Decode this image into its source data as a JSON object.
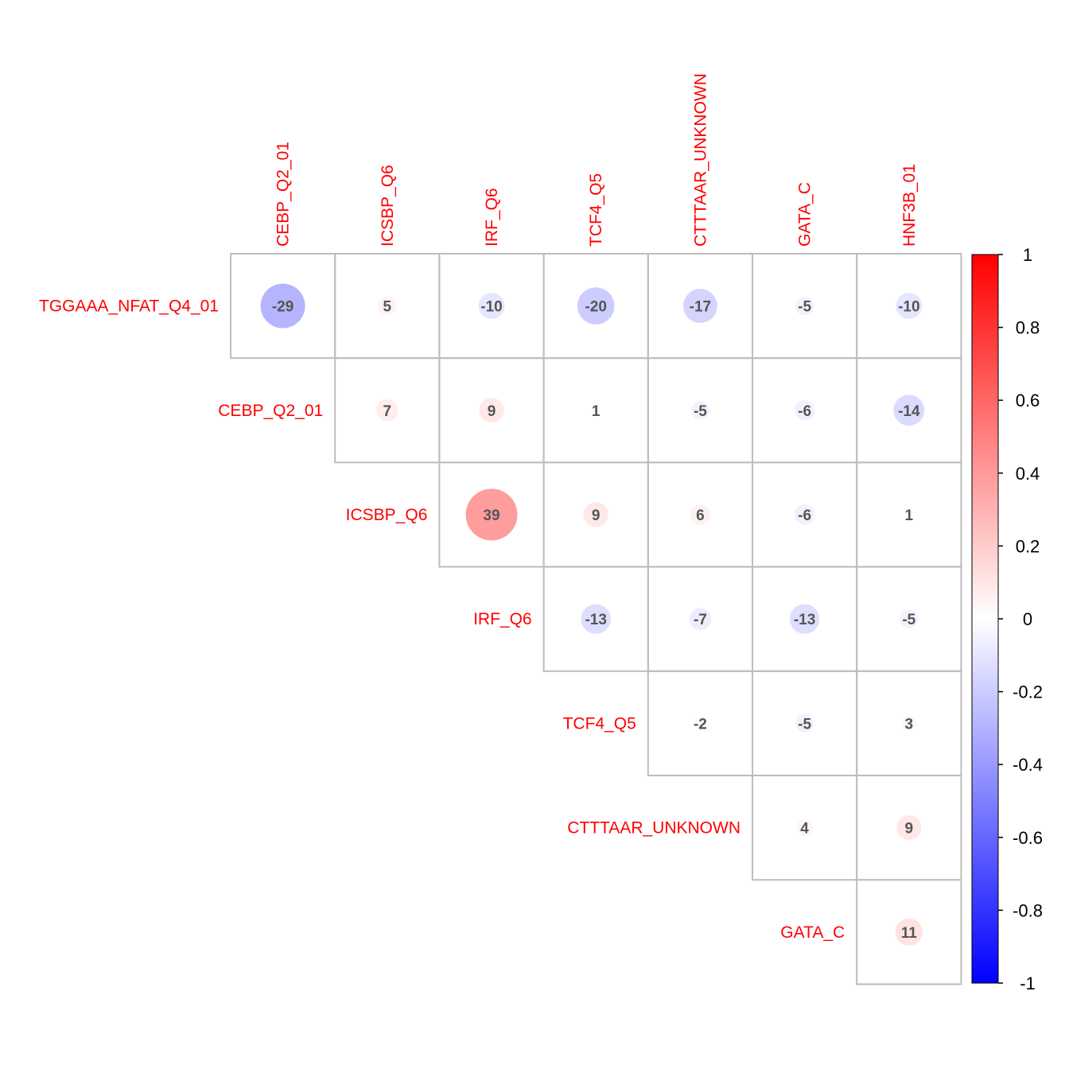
{
  "chart_data": {
    "type": "heatmap",
    "subtype": "correlation-upper-triangle-circles",
    "row_labels": [
      "TGGAAA_NFAT_Q4_01",
      "CEBP_Q2_01",
      "ICSBP_Q6",
      "IRF_Q6",
      "TCF4_Q5",
      "CTTTAAR_UNKNOWN",
      "GATA_C"
    ],
    "col_labels": [
      "CEBP_Q2_01",
      "ICSBP_Q6",
      "IRF_Q6",
      "TCF4_Q5",
      "CTTTAAR_UNKNOWN",
      "GATA_C",
      "HNF3B_01"
    ],
    "values": [
      [
        -29,
        5,
        -10,
        -20,
        -17,
        -5,
        -10
      ],
      [
        7,
        9,
        1,
        -5,
        -6,
        -14
      ],
      [
        39,
        9,
        6,
        -6,
        1
      ],
      [
        -13,
        -7,
        -13,
        -5
      ],
      [
        -2,
        -5,
        3
      ],
      [
        4,
        9
      ],
      [
        11
      ]
    ],
    "value_scale": 100,
    "colorbar": {
      "range": [
        -1,
        1
      ],
      "ticks": [
        "1",
        "0.8",
        "0.6",
        "0.4",
        "0.2",
        "0",
        "-0.2",
        "-0.4",
        "-0.6",
        "-0.8",
        "-1"
      ],
      "colors": {
        "low": "#0000ff",
        "mid": "#ffffff",
        "high": "#ff0000"
      }
    },
    "label_color": "#ff0000",
    "value_text_color": "#555555",
    "grid_color": "#bdbdbd"
  }
}
